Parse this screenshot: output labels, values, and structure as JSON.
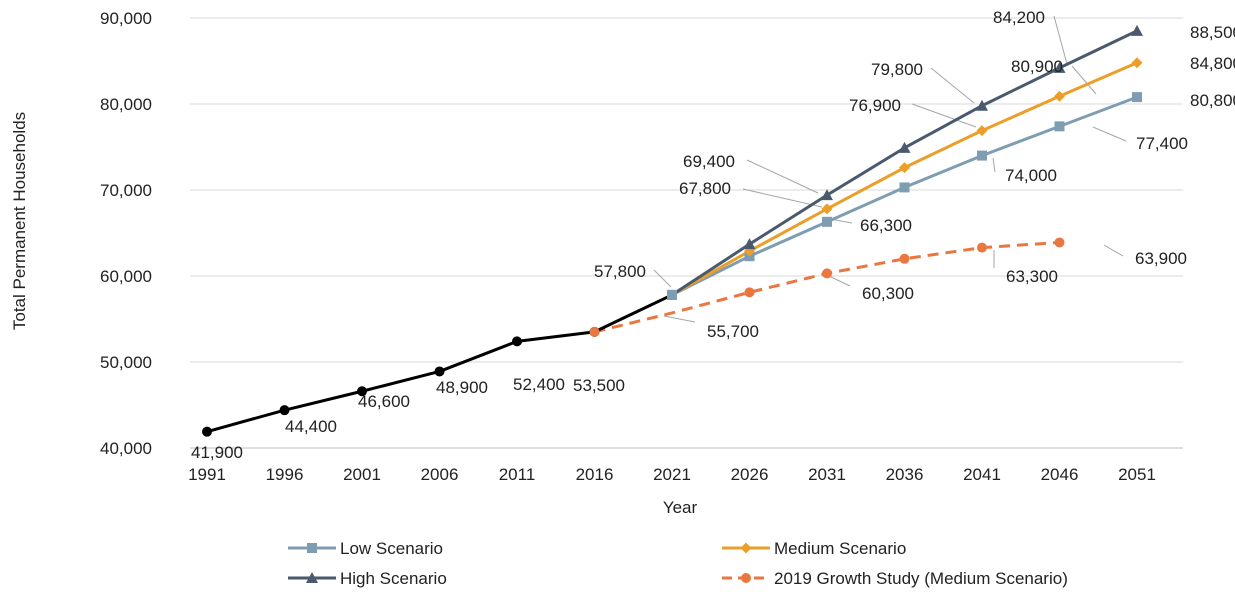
{
  "chart_data": {
    "type": "line",
    "title": "",
    "xlabel": "Year",
    "ylabel": "Total Permanent Households",
    "ylim": [
      40000,
      90000
    ],
    "yticks": [
      40000,
      50000,
      60000,
      70000,
      80000,
      90000
    ],
    "ytick_labels": [
      "40,000",
      "50,000",
      "60,000",
      "70,000",
      "80,000",
      "90,000"
    ],
    "categories": [
      "1991",
      "1996",
      "2001",
      "2006",
      "2011",
      "2016",
      "2021",
      "2026",
      "2031",
      "2036",
      "2041",
      "2046",
      "2051"
    ],
    "grid": "horizontal",
    "legend_position": "bottom",
    "series": [
      {
        "name": "",
        "key": "historical",
        "color": "#000000",
        "marker": "circle",
        "dashed": false,
        "in_legend": false,
        "values": [
          41900,
          44400,
          46600,
          48900,
          52400,
          53500,
          57800,
          null,
          null,
          null,
          null,
          null,
          null
        ]
      },
      {
        "name": "Low Scenario",
        "key": "low",
        "color": "#7f9db2",
        "marker": "square",
        "dashed": false,
        "in_legend": true,
        "values": [
          null,
          null,
          null,
          null,
          null,
          null,
          57800,
          62300,
          66300,
          70300,
          74000,
          77400,
          80800
        ]
      },
      {
        "name": "Medium Scenario",
        "key": "medium",
        "color": "#eb9f2a",
        "marker": "diamond",
        "dashed": false,
        "in_legend": true,
        "values": [
          null,
          null,
          null,
          null,
          null,
          null,
          57800,
          62900,
          67800,
          72600,
          76900,
          80900,
          84800
        ]
      },
      {
        "name": "High Scenario",
        "key": "high",
        "color": "#4a5a6e",
        "marker": "triangle",
        "dashed": false,
        "in_legend": true,
        "values": [
          null,
          null,
          null,
          null,
          null,
          null,
          57800,
          63700,
          69400,
          74900,
          79800,
          84200,
          88500
        ]
      },
      {
        "name": "2019 Growth Study (Medium Scenario)",
        "key": "growth2019",
        "color": "#ea7640",
        "marker": "circle",
        "dashed": true,
        "in_legend": true,
        "values": [
          null,
          null,
          null,
          null,
          null,
          53500,
          55700,
          58100,
          60300,
          62000,
          63300,
          63900,
          null
        ]
      }
    ],
    "data_labels": [
      {
        "text": "41,900"
      },
      {
        "text": "44,400"
      },
      {
        "text": "46,600"
      },
      {
        "text": "48,900"
      },
      {
        "text": "52,400"
      },
      {
        "text": "53,500"
      },
      {
        "text": "57,800"
      },
      {
        "text": "55,700"
      },
      {
        "text": "60,300"
      },
      {
        "text": "63,300"
      },
      {
        "text": "63,900"
      },
      {
        "text": "66,300"
      },
      {
        "text": "74,000"
      },
      {
        "text": "77,400"
      },
      {
        "text": "80,800"
      },
      {
        "text": "67,800"
      },
      {
        "text": "76,900"
      },
      {
        "text": "80,900"
      },
      {
        "text": "84,800"
      },
      {
        "text": "69,400"
      },
      {
        "text": "79,800"
      },
      {
        "text": "84,200"
      },
      {
        "text": "88,500"
      }
    ]
  }
}
